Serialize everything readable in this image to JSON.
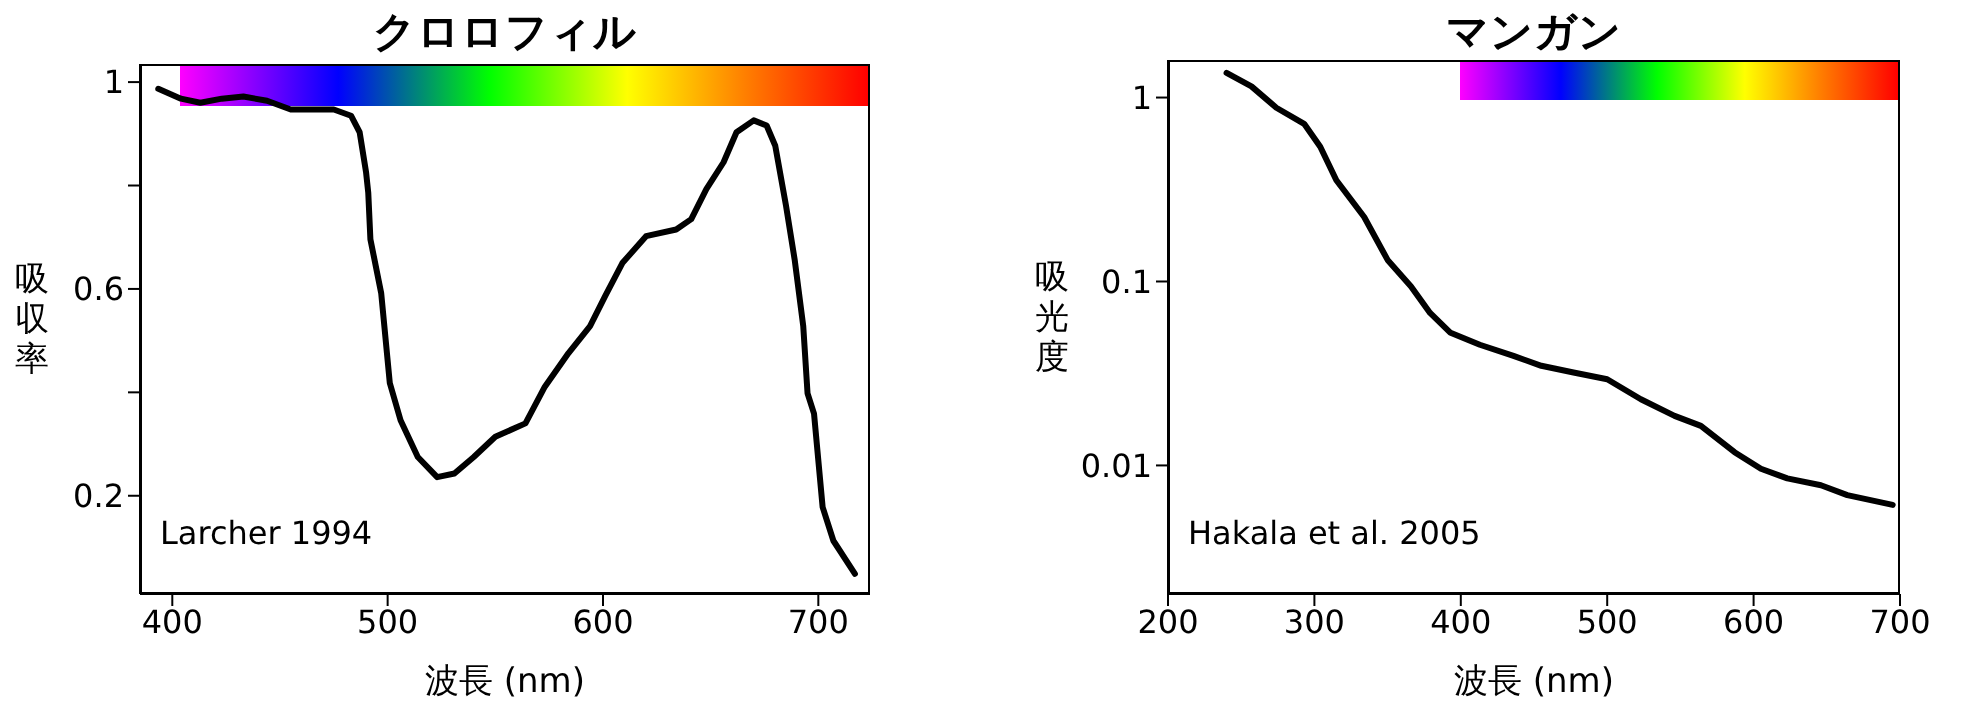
{
  "chart_data": [
    {
      "type": "line",
      "title": "クロロフィル",
      "xlabel": "波長 (nm)",
      "ylabel": "吸収率",
      "annotations": [
        "Larcher 1994"
      ],
      "color": "#000000",
      "xlim": [
        385,
        724
      ],
      "xticks": [
        400,
        500,
        600,
        700
      ],
      "ylim": [
        0.01,
        1.035
      ],
      "yticks": [
        0.2,
        {
          "value": 0.4,
          "label": null
        },
        0.6,
        {
          "value": 0.8,
          "label": null
        },
        1
      ],
      "x": [
        393.5,
        404,
        413,
        423,
        433,
        444,
        455,
        463,
        475,
        483,
        487,
        490,
        491,
        492,
        497,
        501,
        506,
        514,
        523,
        531,
        540,
        550,
        564,
        573,
        584,
        594,
        601,
        609,
        620,
        634,
        641,
        648,
        656,
        662,
        670,
        676,
        680,
        685,
        689,
        693,
        695,
        698,
        702,
        707,
        717
      ],
      "values": [
        0.987,
        0.968,
        0.96,
        0.968,
        0.972,
        0.964,
        0.947,
        0.947,
        0.947,
        0.935,
        0.903,
        0.825,
        0.786,
        0.696,
        0.592,
        0.418,
        0.346,
        0.275,
        0.236,
        0.243,
        0.275,
        0.314,
        0.34,
        0.411,
        0.476,
        0.528,
        0.586,
        0.65,
        0.702,
        0.715,
        0.735,
        0.793,
        0.845,
        0.903,
        0.926,
        0.916,
        0.877,
        0.761,
        0.657,
        0.528,
        0.398,
        0.359,
        0.178,
        0.113,
        0.049
      ]
    },
    {
      "type": "line",
      "title": "マンガン",
      "xlabel": "波長 (nm)",
      "ylabel": "吸光度",
      "annotations": [
        "Hakala et al. 2005"
      ],
      "color": "#000000",
      "log": "y",
      "xlim": [
        200,
        700
      ],
      "xticks": [
        200,
        300,
        400,
        500,
        600,
        700
      ],
      "ylim": [
        0.002,
        1.6
      ],
      "yticks": [
        0.01,
        0.1,
        1
      ],
      "x": [
        240,
        257,
        274,
        293,
        304,
        315,
        334,
        350,
        366,
        379,
        393,
        413,
        436,
        455,
        477,
        500,
        523,
        546,
        564,
        587,
        605,
        623,
        646,
        664,
        695
      ],
      "values": [
        1.36,
        1.15,
        0.88,
        0.72,
        0.54,
        0.355,
        0.224,
        0.131,
        0.094,
        0.0675,
        0.0526,
        0.0453,
        0.0394,
        0.0348,
        0.032,
        0.0294,
        0.0229,
        0.0186,
        0.0164,
        0.0118,
        0.0096,
        0.0085,
        0.0078,
        0.0069,
        0.0061
      ]
    }
  ]
}
